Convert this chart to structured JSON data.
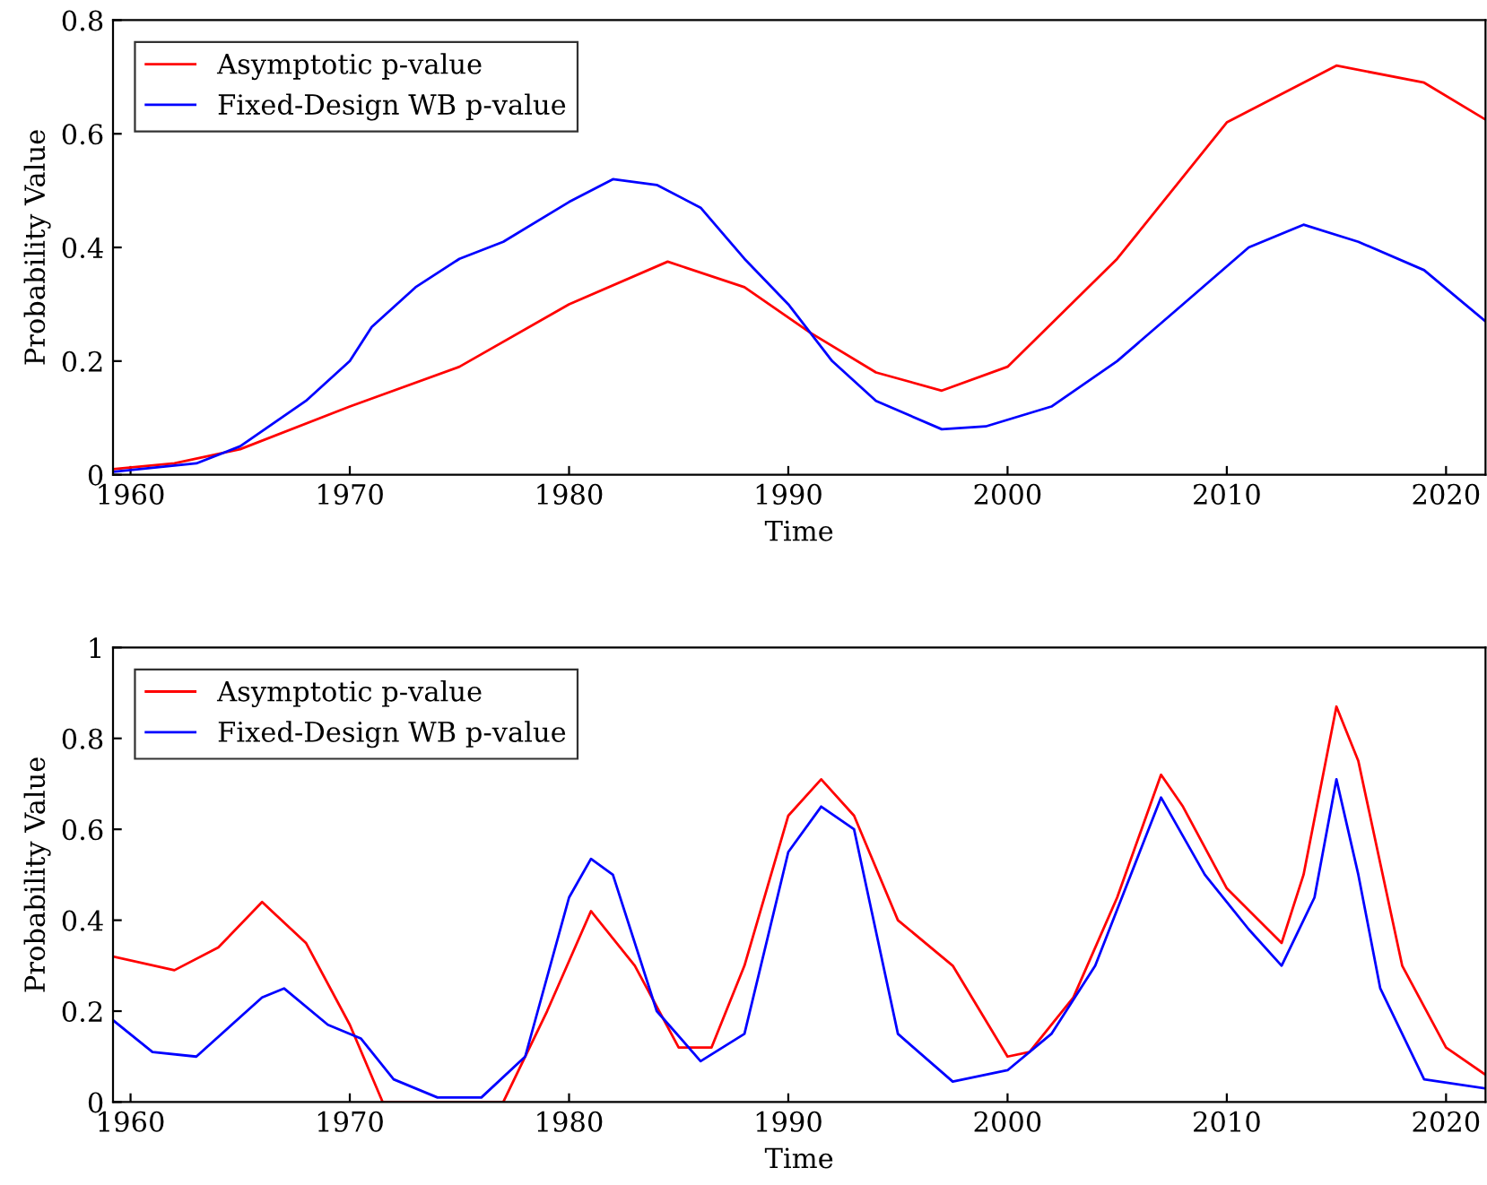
{
  "chart_data": [
    {
      "type": "line",
      "ylabel": "Probability Value",
      "xlabel": "Time",
      "xlim": [
        1959.2,
        2021.8
      ],
      "ylim": [
        0,
        0.8
      ],
      "xticks": [
        1960,
        1970,
        1980,
        1990,
        2000,
        2010,
        2020
      ],
      "yticks": [
        0,
        0.2,
        0.4,
        0.6,
        0.8
      ],
      "legend": "top left",
      "grid": false,
      "series": [
        {
          "name": "Asymptotic p-value",
          "color": "#ff0000",
          "x": [
            1959.2,
            1962,
            1965,
            1970,
            1975,
            1980,
            1984.5,
            1988,
            1991,
            1994,
            1997,
            2000,
            2005,
            2010,
            2015,
            2019,
            2021.8
          ],
          "values": [
            0.01,
            0.02,
            0.045,
            0.12,
            0.19,
            0.3,
            0.375,
            0.33,
            0.25,
            0.18,
            0.148,
            0.19,
            0.38,
            0.62,
            0.72,
            0.69,
            0.625
          ]
        },
        {
          "name": "Fixed-Design WB p-value",
          "color": "#0000ff",
          "x": [
            1959.2,
            1963,
            1965,
            1968,
            1970,
            1971,
            1973,
            1975,
            1977,
            1980,
            1982,
            1984,
            1986,
            1988,
            1990,
            1992,
            1994,
            1997,
            1999,
            2002,
            2005,
            2008,
            2011,
            2013.5,
            2016,
            2019,
            2021.8
          ],
          "values": [
            0.005,
            0.02,
            0.05,
            0.13,
            0.2,
            0.26,
            0.33,
            0.38,
            0.41,
            0.48,
            0.52,
            0.51,
            0.47,
            0.38,
            0.3,
            0.2,
            0.13,
            0.08,
            0.085,
            0.12,
            0.2,
            0.3,
            0.4,
            0.44,
            0.41,
            0.36,
            0.27
          ]
        }
      ]
    },
    {
      "type": "line",
      "ylabel": "Probability Value",
      "xlabel": "Time",
      "xlim": [
        1959.2,
        2021.8
      ],
      "ylim": [
        0,
        1
      ],
      "xticks": [
        1960,
        1970,
        1980,
        1990,
        2000,
        2010,
        2020
      ],
      "yticks": [
        0,
        0.2,
        0.4,
        0.6,
        0.8,
        1
      ],
      "legend": "top left",
      "grid": false,
      "series": [
        {
          "name": "Asymptotic p-value",
          "color": "#ff0000",
          "x": [
            1959.2,
            1962,
            1964,
            1966,
            1968,
            1970,
            1971.5,
            1977,
            1979,
            1981,
            1983,
            1985,
            1986.5,
            1988,
            1990,
            1991.5,
            1993,
            1995,
            1997.5,
            2000,
            2001,
            2003,
            2005,
            2007,
            2008,
            2010,
            2012.5,
            2013.5,
            2015,
            2016,
            2018,
            2020,
            2021.8
          ],
          "values": [
            0.32,
            0.29,
            0.34,
            0.44,
            0.35,
            0.17,
            0.0,
            0.0,
            0.2,
            0.42,
            0.3,
            0.12,
            0.12,
            0.3,
            0.63,
            0.71,
            0.63,
            0.4,
            0.3,
            0.1,
            0.11,
            0.23,
            0.45,
            0.72,
            0.65,
            0.47,
            0.35,
            0.5,
            0.87,
            0.75,
            0.3,
            0.12,
            0.06
          ]
        },
        {
          "name": "Fixed-Design WB p-value",
          "color": "#0000ff",
          "x": [
            1959.2,
            1961,
            1963,
            1966,
            1967,
            1969,
            1970.5,
            1972,
            1974,
            1976,
            1978,
            1980,
            1981,
            1982,
            1984,
            1986,
            1988,
            1990,
            1991.5,
            1993,
            1995,
            1997.5,
            2000,
            2002,
            2004,
            2007,
            2009,
            2011,
            2012.5,
            2014,
            2015,
            2016,
            2017,
            2019,
            2021.8
          ],
          "values": [
            0.18,
            0.11,
            0.1,
            0.23,
            0.25,
            0.17,
            0.14,
            0.05,
            0.01,
            0.01,
            0.1,
            0.45,
            0.535,
            0.5,
            0.2,
            0.09,
            0.15,
            0.55,
            0.65,
            0.6,
            0.15,
            0.045,
            0.07,
            0.15,
            0.3,
            0.67,
            0.5,
            0.38,
            0.3,
            0.45,
            0.71,
            0.5,
            0.25,
            0.05,
            0.03
          ]
        }
      ]
    }
  ]
}
